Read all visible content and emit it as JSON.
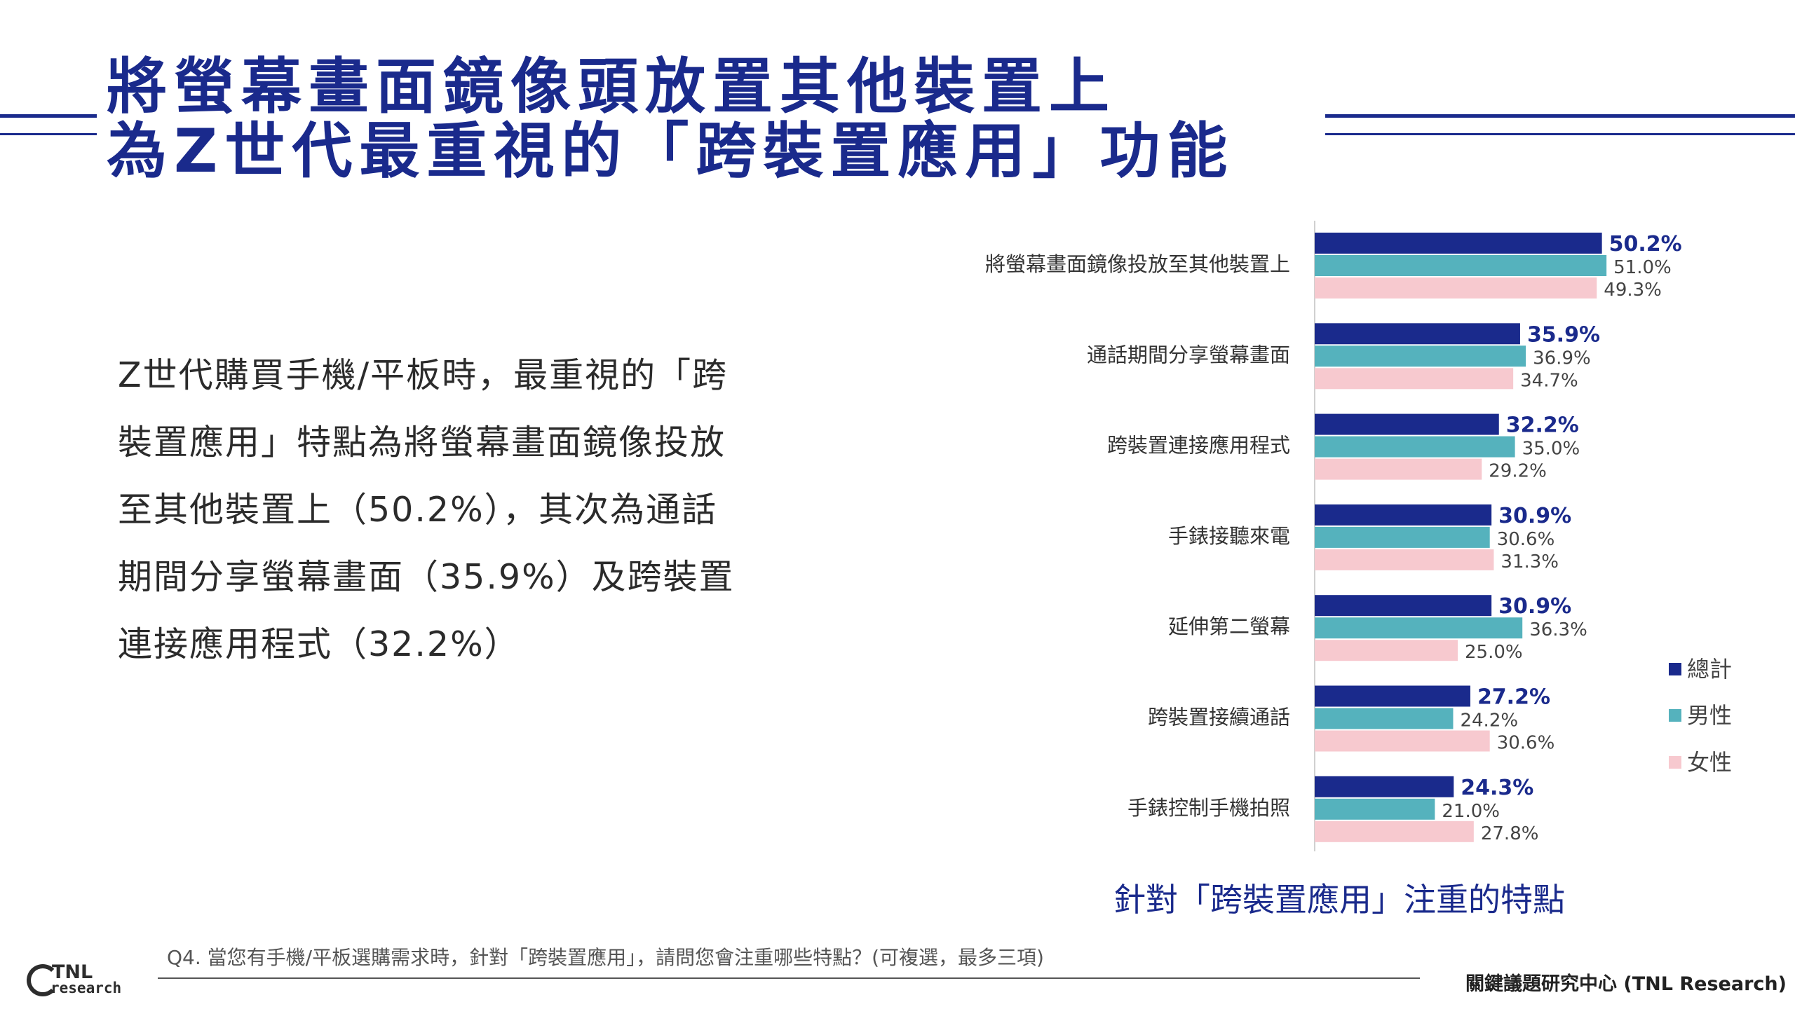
{
  "header": {
    "title_line1": "將螢幕畫面鏡像頭放置其他裝置上",
    "title_line2": "為Z世代最重視的「跨裝置應用」功能"
  },
  "body": {
    "paragraph_lines": [
      "Z世代購買手機/平板時，最重視的「跨",
      "裝置應用」特點為將螢幕畫面鏡像投放",
      "至其他裝置上（50.2%），其次為通話",
      "期間分享螢幕畫面（35.9%）及跨裝置",
      "連接應用程式（32.2%）"
    ]
  },
  "colors": {
    "title": "#1a2a8c",
    "total": "#1a2a8c",
    "male": "#55b2bd",
    "female": "#f7c9cf"
  },
  "chart_data": {
    "type": "bar",
    "orientation": "horizontal",
    "categories": [
      "將螢幕畫面鏡像投放至其他裝置上",
      "通話期間分享螢幕畫面",
      "跨裝置連接應用程式",
      "手錶接聽來電",
      "延伸第二螢幕",
      "跨裝置接續通話",
      "手錶控制手機拍照"
    ],
    "series": [
      {
        "name": "總計",
        "values": [
          50.2,
          35.9,
          32.2,
          30.9,
          30.9,
          27.2,
          24.3
        ],
        "labels": [
          "50.2%",
          "35.9%",
          "32.2%",
          "30.9%",
          "30.9%",
          "27.2%",
          "24.3%"
        ]
      },
      {
        "name": "男性",
        "values": [
          51.0,
          36.9,
          35.0,
          30.6,
          36.3,
          24.2,
          21.0
        ],
        "labels": [
          "51.0%",
          "36.9%",
          "35.0%",
          "30.6%",
          "36.3%",
          "24.2%",
          "21.0%"
        ]
      },
      {
        "name": "女性",
        "values": [
          49.3,
          34.7,
          29.2,
          31.3,
          25.0,
          30.6,
          27.8
        ],
        "labels": [
          "49.3%",
          "34.7%",
          "29.2%",
          "31.3%",
          "25.0%",
          "30.6%",
          "27.8%"
        ]
      }
    ],
    "xlim": [
      0,
      60
    ],
    "legend_position": "right",
    "grid": false,
    "subtitle": "針對「跨裝置應用」注重的特點"
  },
  "footer": {
    "question": "Q4. 當您有手機/平板選購需求時，針對「跨裝置應用」，請問您會注重哪些特點？(可複選，最多三項)",
    "source": "關鍵議題研究中心 (TNL Research)",
    "logo_text_top": "TNL",
    "logo_text_bottom": "research"
  }
}
